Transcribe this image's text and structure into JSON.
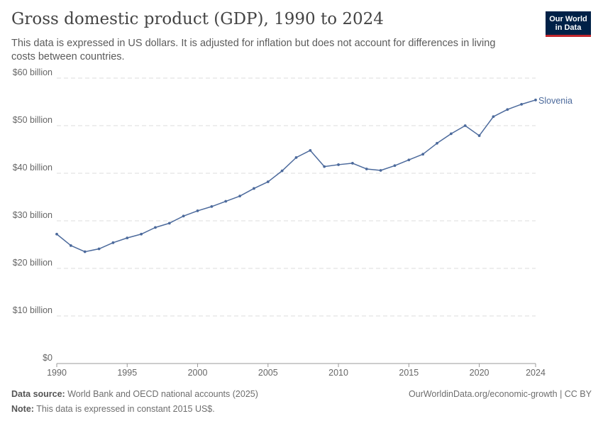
{
  "header": {
    "title": "Gross domestic product (GDP), 1990 to 2024",
    "subtitle": "This data is expressed in US dollars. It is adjusted for inflation but does not account for differences in living costs between countries."
  },
  "logo": {
    "line1": "Our World",
    "line2": "in Data",
    "bg_color": "#002147",
    "accent_color": "#c1272d"
  },
  "footer": {
    "source_label": "Data source:",
    "source_text": "World Bank and OECD national accounts (2025)",
    "note_label": "Note:",
    "note_text": "This data is expressed in constant 2015 US$.",
    "credit": "OurWorldinData.org/economic-growth | CC BY"
  },
  "chart_data": {
    "type": "line",
    "title": "Gross domestic product (GDP), 1990 to 2024",
    "xlabel": "",
    "ylabel": "",
    "xlim": [
      1990,
      2024
    ],
    "ylim": [
      0,
      60
    ],
    "grid": true,
    "legend": "line-end labels",
    "x_ticks": [
      {
        "value": 1990,
        "label": "1990"
      },
      {
        "value": 1995,
        "label": "1995"
      },
      {
        "value": 2000,
        "label": "2000"
      },
      {
        "value": 2005,
        "label": "2005"
      },
      {
        "value": 2010,
        "label": "2010"
      },
      {
        "value": 2015,
        "label": "2015"
      },
      {
        "value": 2020,
        "label": "2020"
      },
      {
        "value": 2024,
        "label": "2024"
      }
    ],
    "y_ticks": [
      {
        "value": 0,
        "label": "$0"
      },
      {
        "value": 10,
        "label": "$10 billion"
      },
      {
        "value": 20,
        "label": "$20 billion"
      },
      {
        "value": 30,
        "label": "$30 billion"
      },
      {
        "value": 40,
        "label": "$40 billion"
      },
      {
        "value": 50,
        "label": "$50 billion"
      },
      {
        "value": 60,
        "label": "$60 billion"
      }
    ],
    "series": [
      {
        "name": "Slovenia",
        "color": "#4c6a9c",
        "x": [
          1990,
          1991,
          1992,
          1993,
          1994,
          1995,
          1996,
          1997,
          1998,
          1999,
          2000,
          2001,
          2002,
          2003,
          2004,
          2005,
          2006,
          2007,
          2008,
          2009,
          2010,
          2011,
          2012,
          2013,
          2014,
          2015,
          2016,
          2017,
          2018,
          2019,
          2020,
          2021,
          2022,
          2023,
          2024
        ],
        "y": [
          27.2,
          24.8,
          23.5,
          24.1,
          25.4,
          26.4,
          27.2,
          28.6,
          29.5,
          31.0,
          32.1,
          33.0,
          34.1,
          35.2,
          36.8,
          38.2,
          40.5,
          43.3,
          44.8,
          41.4,
          41.8,
          42.1,
          40.9,
          40.6,
          41.6,
          42.8,
          44.0,
          46.3,
          48.3,
          50.0,
          47.9,
          51.9,
          53.4,
          54.5,
          55.4
        ]
      }
    ]
  }
}
